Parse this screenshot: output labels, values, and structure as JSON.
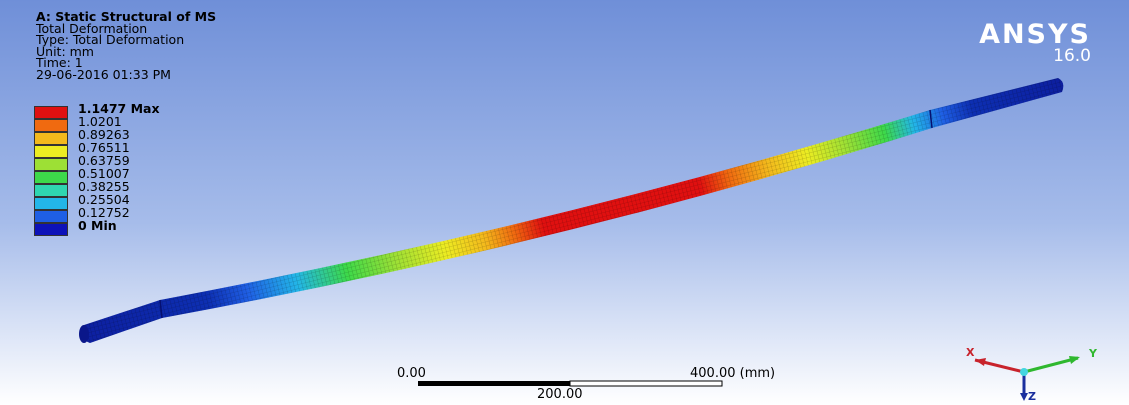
{
  "info": {
    "title": "A: Static Structural of MS",
    "result": "Total Deformation",
    "type": "Type: Total Deformation",
    "unit": "Unit: mm",
    "time": "Time: 1",
    "timestamp": "29-06-2016 01:33 PM"
  },
  "legend": {
    "entries": [
      {
        "label": "1.1477 Max",
        "color": "#e01010",
        "bold": true
      },
      {
        "label": "1.0201",
        "color": "#f06a10",
        "bold": false
      },
      {
        "label": "0.89263",
        "color": "#f3b91c",
        "bold": false
      },
      {
        "label": "0.76511",
        "color": "#ecec22",
        "bold": false
      },
      {
        "label": "0.63759",
        "color": "#9de035",
        "bold": false
      },
      {
        "label": "0.51007",
        "color": "#3dd94a",
        "bold": false
      },
      {
        "label": "0.38255",
        "color": "#2fd6b0",
        "bold": false
      },
      {
        "label": "0.25504",
        "color": "#23b6e8",
        "bold": false
      },
      {
        "label": "0.12752",
        "color": "#1f5fe4",
        "bold": false
      },
      {
        "label": "0 Min",
        "color": "#0d12b8",
        "bold": true
      }
    ]
  },
  "logo": {
    "name": "ANSYS",
    "version": "16.0"
  },
  "scale_bar": {
    "left": "0.00",
    "middle": "200.00",
    "right": "400.00 (mm)"
  },
  "triad": {
    "x": "X",
    "y": "Y",
    "z": "Z"
  },
  "colors": {
    "shaft_blue": "#0d2ba6",
    "bg_top": "#6f8fd8"
  }
}
